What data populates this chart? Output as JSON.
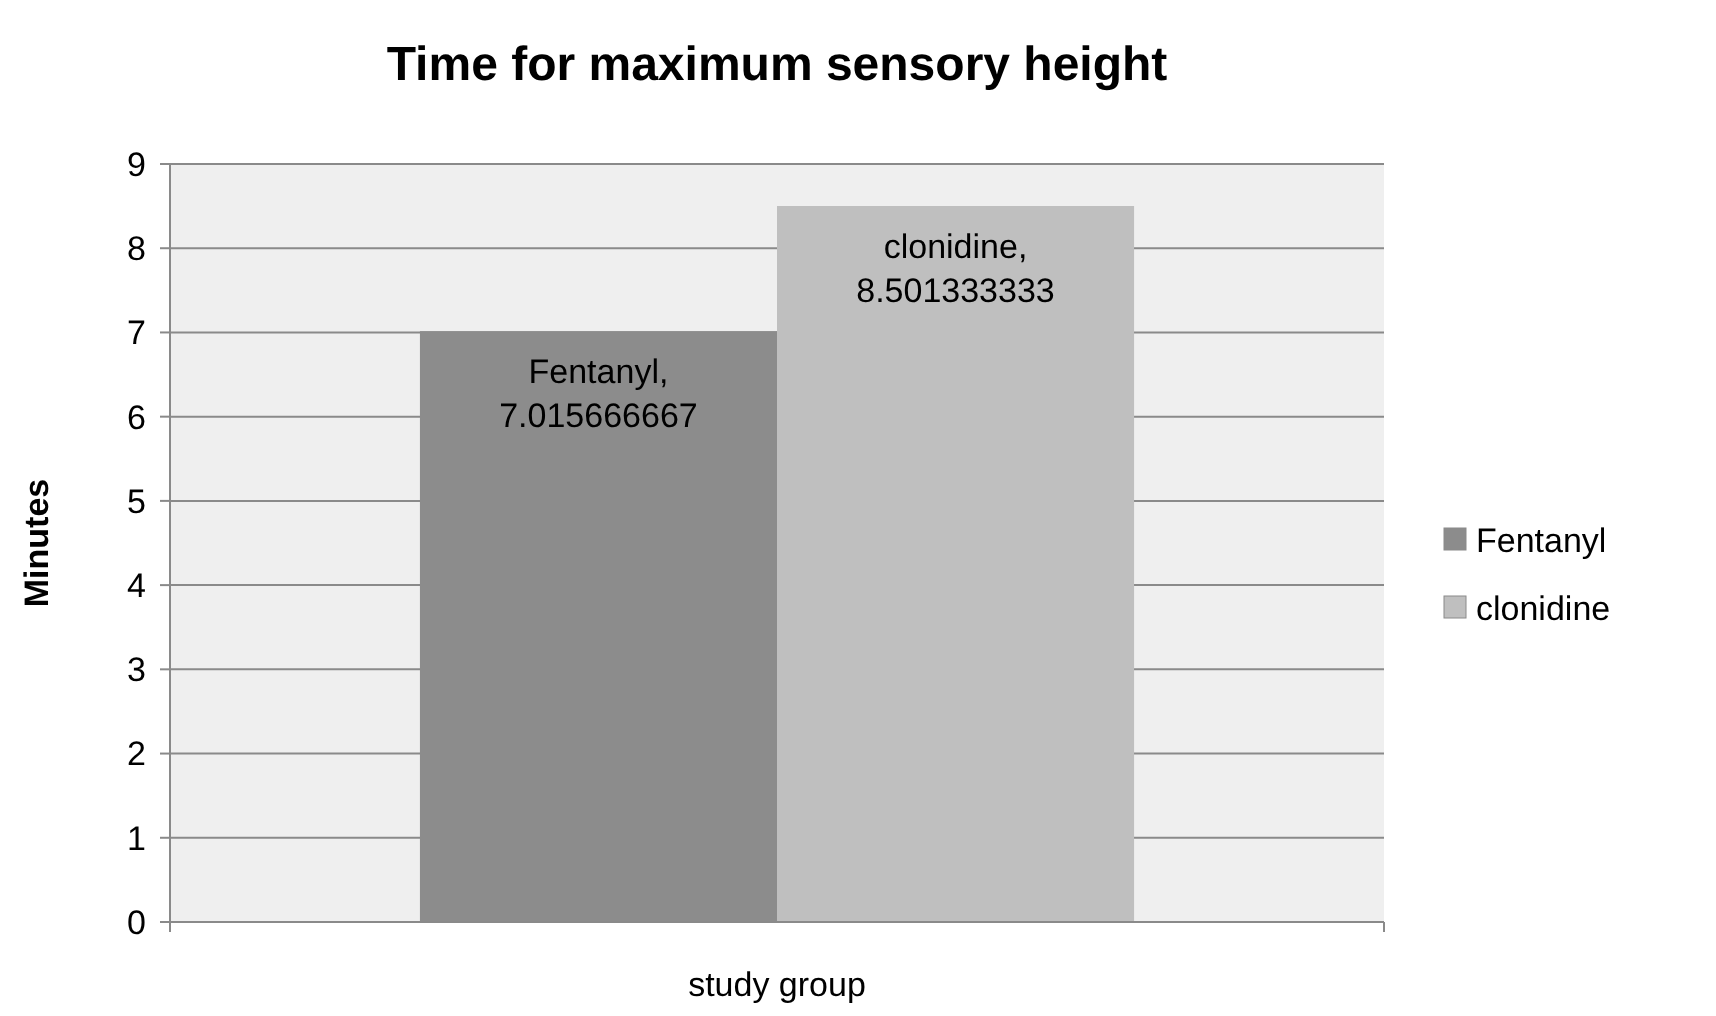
{
  "chart_data": {
    "type": "bar",
    "title": "Time for maximum sensory height",
    "xlabel": "study group",
    "ylabel": "Minutes",
    "categories": [
      null
    ],
    "series": [
      {
        "name": "Fentanyl",
        "color": "#8c8c8c",
        "values": [
          7.015666667
        ],
        "value_labels": [
          "Fentanyl, 7.015666667"
        ]
      },
      {
        "name": "clonidine",
        "color": "#bfbfbf",
        "values": [
          8.501333333
        ],
        "value_labels": [
          "clonidine, 8.501333333"
        ]
      }
    ],
    "ylim": [
      0,
      9
    ],
    "yticks": [
      0,
      1,
      2,
      3,
      4,
      5,
      6,
      7,
      8,
      9
    ],
    "grid": "y",
    "legend": "right"
  }
}
